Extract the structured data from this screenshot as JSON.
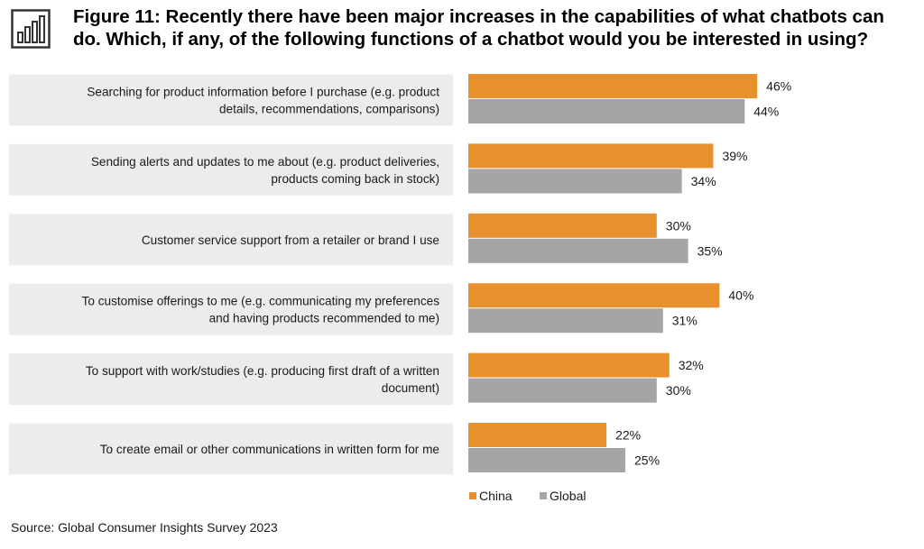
{
  "figure": {
    "title": "Figure 11: Recently there have been major increases in the capabilities of what chatbots can do. Which, if any, of the following functions of a chatbot would you be interested in using?",
    "source": "Source:  Global Consumer Insights Survey 2023",
    "icon": "bar-chart-icon"
  },
  "chart_data": {
    "type": "bar",
    "orientation": "horizontal",
    "categories": [
      [
        "Searching for product information before I purchase (e.g. product",
        "details, recommendations, comparisons)"
      ],
      [
        "Sending alerts and updates to me about (e.g. product deliveries,",
        "products coming back in stock)"
      ],
      [
        "Customer service support from a retailer or brand I use"
      ],
      [
        "To customise offerings to me (e.g. communicating my preferences",
        "and having products recommended to me)"
      ],
      [
        "To support with work/studies (e.g. producing first draft of a written",
        "document)"
      ],
      [
        "To create email or other communications in written form for me"
      ]
    ],
    "series": [
      {
        "name": "China",
        "color": "#e8902e",
        "values": [
          46,
          39,
          30,
          40,
          32,
          22
        ],
        "labels": [
          "46%",
          "39%",
          "30%",
          "40%",
          "32%",
          "22%"
        ]
      },
      {
        "name": "Global",
        "color": "#a5a5a5",
        "values": [
          44,
          34,
          35,
          31,
          30,
          25
        ],
        "labels": [
          "44%",
          "34%",
          "35%",
          "31%",
          "30%",
          "25%"
        ]
      }
    ],
    "value_unit": "%",
    "grid": false,
    "legend_position": "bottom"
  }
}
